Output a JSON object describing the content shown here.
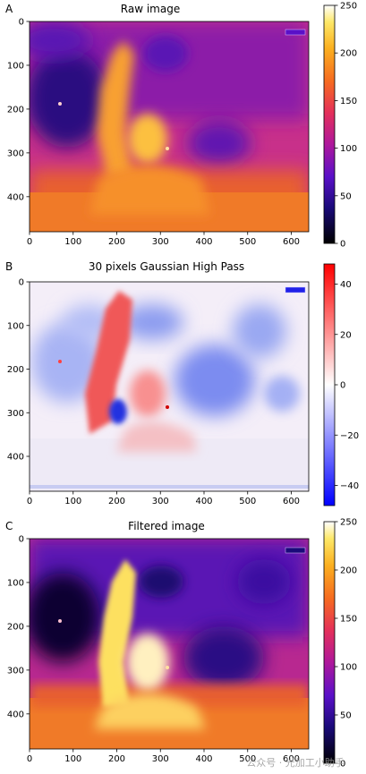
{
  "chart_data": [
    {
      "type": "heatmap",
      "panel_label": "A",
      "title": "Raw image",
      "colormap": "gnuplot2",
      "x_ticks": [
        0,
        100,
        200,
        300,
        400,
        500,
        600
      ],
      "y_ticks": [
        0,
        100,
        200,
        300,
        400
      ],
      "xlim": [
        0,
        640
      ],
      "ylim": [
        480,
        0
      ],
      "colorbar_ticks": [
        0,
        50,
        100,
        150,
        200,
        250
      ],
      "colorbar_range": [
        0,
        250
      ]
    },
    {
      "type": "heatmap",
      "panel_label": "B",
      "title": "30 pixels Gaussian High Pass",
      "colormap": "bwr",
      "x_ticks": [
        0,
        100,
        200,
        300,
        400,
        500,
        600
      ],
      "y_ticks": [
        0,
        100,
        200,
        300,
        400
      ],
      "xlim": [
        0,
        640
      ],
      "ylim": [
        480,
        0
      ],
      "colorbar_ticks": [
        40,
        20,
        0,
        -20,
        -40
      ],
      "colorbar_range": [
        -48,
        48
      ]
    },
    {
      "type": "heatmap",
      "panel_label": "C",
      "title": "Filtered image",
      "colormap": "gnuplot2",
      "x_ticks": [
        0,
        100,
        200,
        300,
        400,
        500,
        600
      ],
      "y_ticks": [
        0,
        100,
        200,
        300,
        400
      ],
      "xlim": [
        0,
        640
      ],
      "ylim": [
        480,
        0
      ],
      "colorbar_ticks": [
        0,
        50,
        100,
        150,
        200,
        250
      ],
      "colorbar_range": [
        0,
        250
      ]
    }
  ],
  "watermark": "公众号 · 光加工小助手"
}
